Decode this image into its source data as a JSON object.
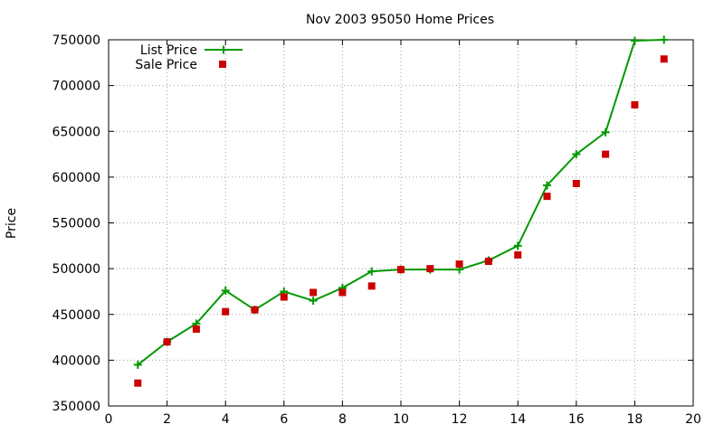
{
  "chart_data": {
    "type": "line",
    "title": "Nov 2003 95050 Home Prices",
    "xlabel": "",
    "ylabel": "Price",
    "xlim": [
      0,
      20
    ],
    "ylim": [
      350000,
      750000
    ],
    "x_ticks": [
      0,
      2,
      4,
      6,
      8,
      10,
      12,
      14,
      16,
      18,
      20
    ],
    "y_ticks": [
      350000,
      400000,
      450000,
      500000,
      550000,
      600000,
      650000,
      700000,
      750000
    ],
    "x_tick_labels": [
      "0",
      "2",
      "4",
      "6",
      "8",
      "10",
      "12",
      "14",
      "16",
      "18",
      "20"
    ],
    "y_tick_labels": [
      "350000",
      "400000",
      "450000",
      "500000",
      "550000",
      "600000",
      "650000",
      "700000",
      "750000"
    ],
    "grid": true,
    "legend_position": "top-left",
    "series": [
      {
        "name": "List Price",
        "style": "line-plus",
        "color": "#009900",
        "x": [
          1,
          2,
          3,
          4,
          5,
          6,
          7,
          8,
          9,
          10,
          11,
          12,
          13,
          14,
          15,
          16,
          17,
          18,
          19
        ],
        "y": [
          395000,
          420000,
          440000,
          476000,
          455000,
          475000,
          465000,
          479000,
          497000,
          499000,
          499000,
          499000,
          509000,
          525000,
          591000,
          625000,
          649000,
          749000,
          750000
        ]
      },
      {
        "name": "Sale Price",
        "style": "square-markers",
        "color": "#cc0000",
        "x": [
          1,
          2,
          3,
          4,
          5,
          6,
          7,
          8,
          9,
          10,
          11,
          12,
          13,
          14,
          15,
          16,
          17,
          18,
          19
        ],
        "y": [
          375000,
          420000,
          434000,
          453000,
          455000,
          469000,
          474000,
          474000,
          481000,
          499000,
          500000,
          505000,
          508000,
          515000,
          579000,
          593000,
          625000,
          679000,
          729000
        ]
      }
    ]
  }
}
